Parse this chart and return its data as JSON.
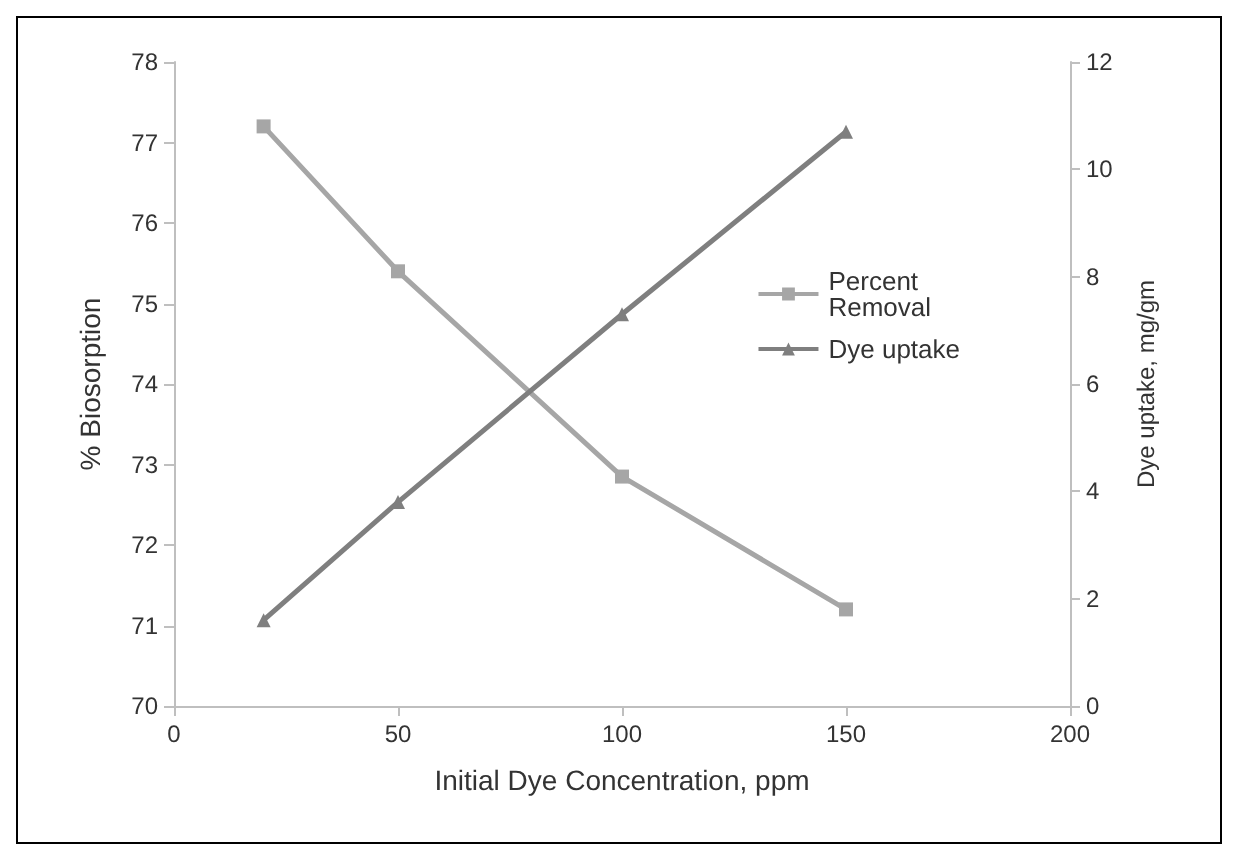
{
  "chart_data": {
    "type": "line",
    "xlabel": "Initial Dye Concentration, ppm",
    "ylabel": "% Biosorption",
    "y2label": "Dye uptake, mg/gm",
    "x": [
      20,
      50,
      100,
      150
    ],
    "xlim": [
      0,
      200
    ],
    "xticks": [
      0,
      50,
      100,
      150,
      200
    ],
    "ylim": [
      70,
      78
    ],
    "yticks": [
      70,
      71,
      72,
      73,
      74,
      75,
      76,
      77,
      78
    ],
    "y2lim": [
      0,
      12
    ],
    "y2ticks": [
      0,
      2,
      4,
      6,
      8,
      10,
      12
    ],
    "series": [
      {
        "name": "Percent Removal",
        "color": "#a6a6a6",
        "marker": "square",
        "values": [
          77.2,
          75.4,
          72.85,
          71.2
        ]
      },
      {
        "name": "Dye uptake",
        "color": "#7f7f7f",
        "marker": "triangle",
        "axis": "y2",
        "values": [
          1.6,
          3.8,
          7.3,
          10.7
        ]
      }
    ],
    "grid": false,
    "legend": "right"
  }
}
